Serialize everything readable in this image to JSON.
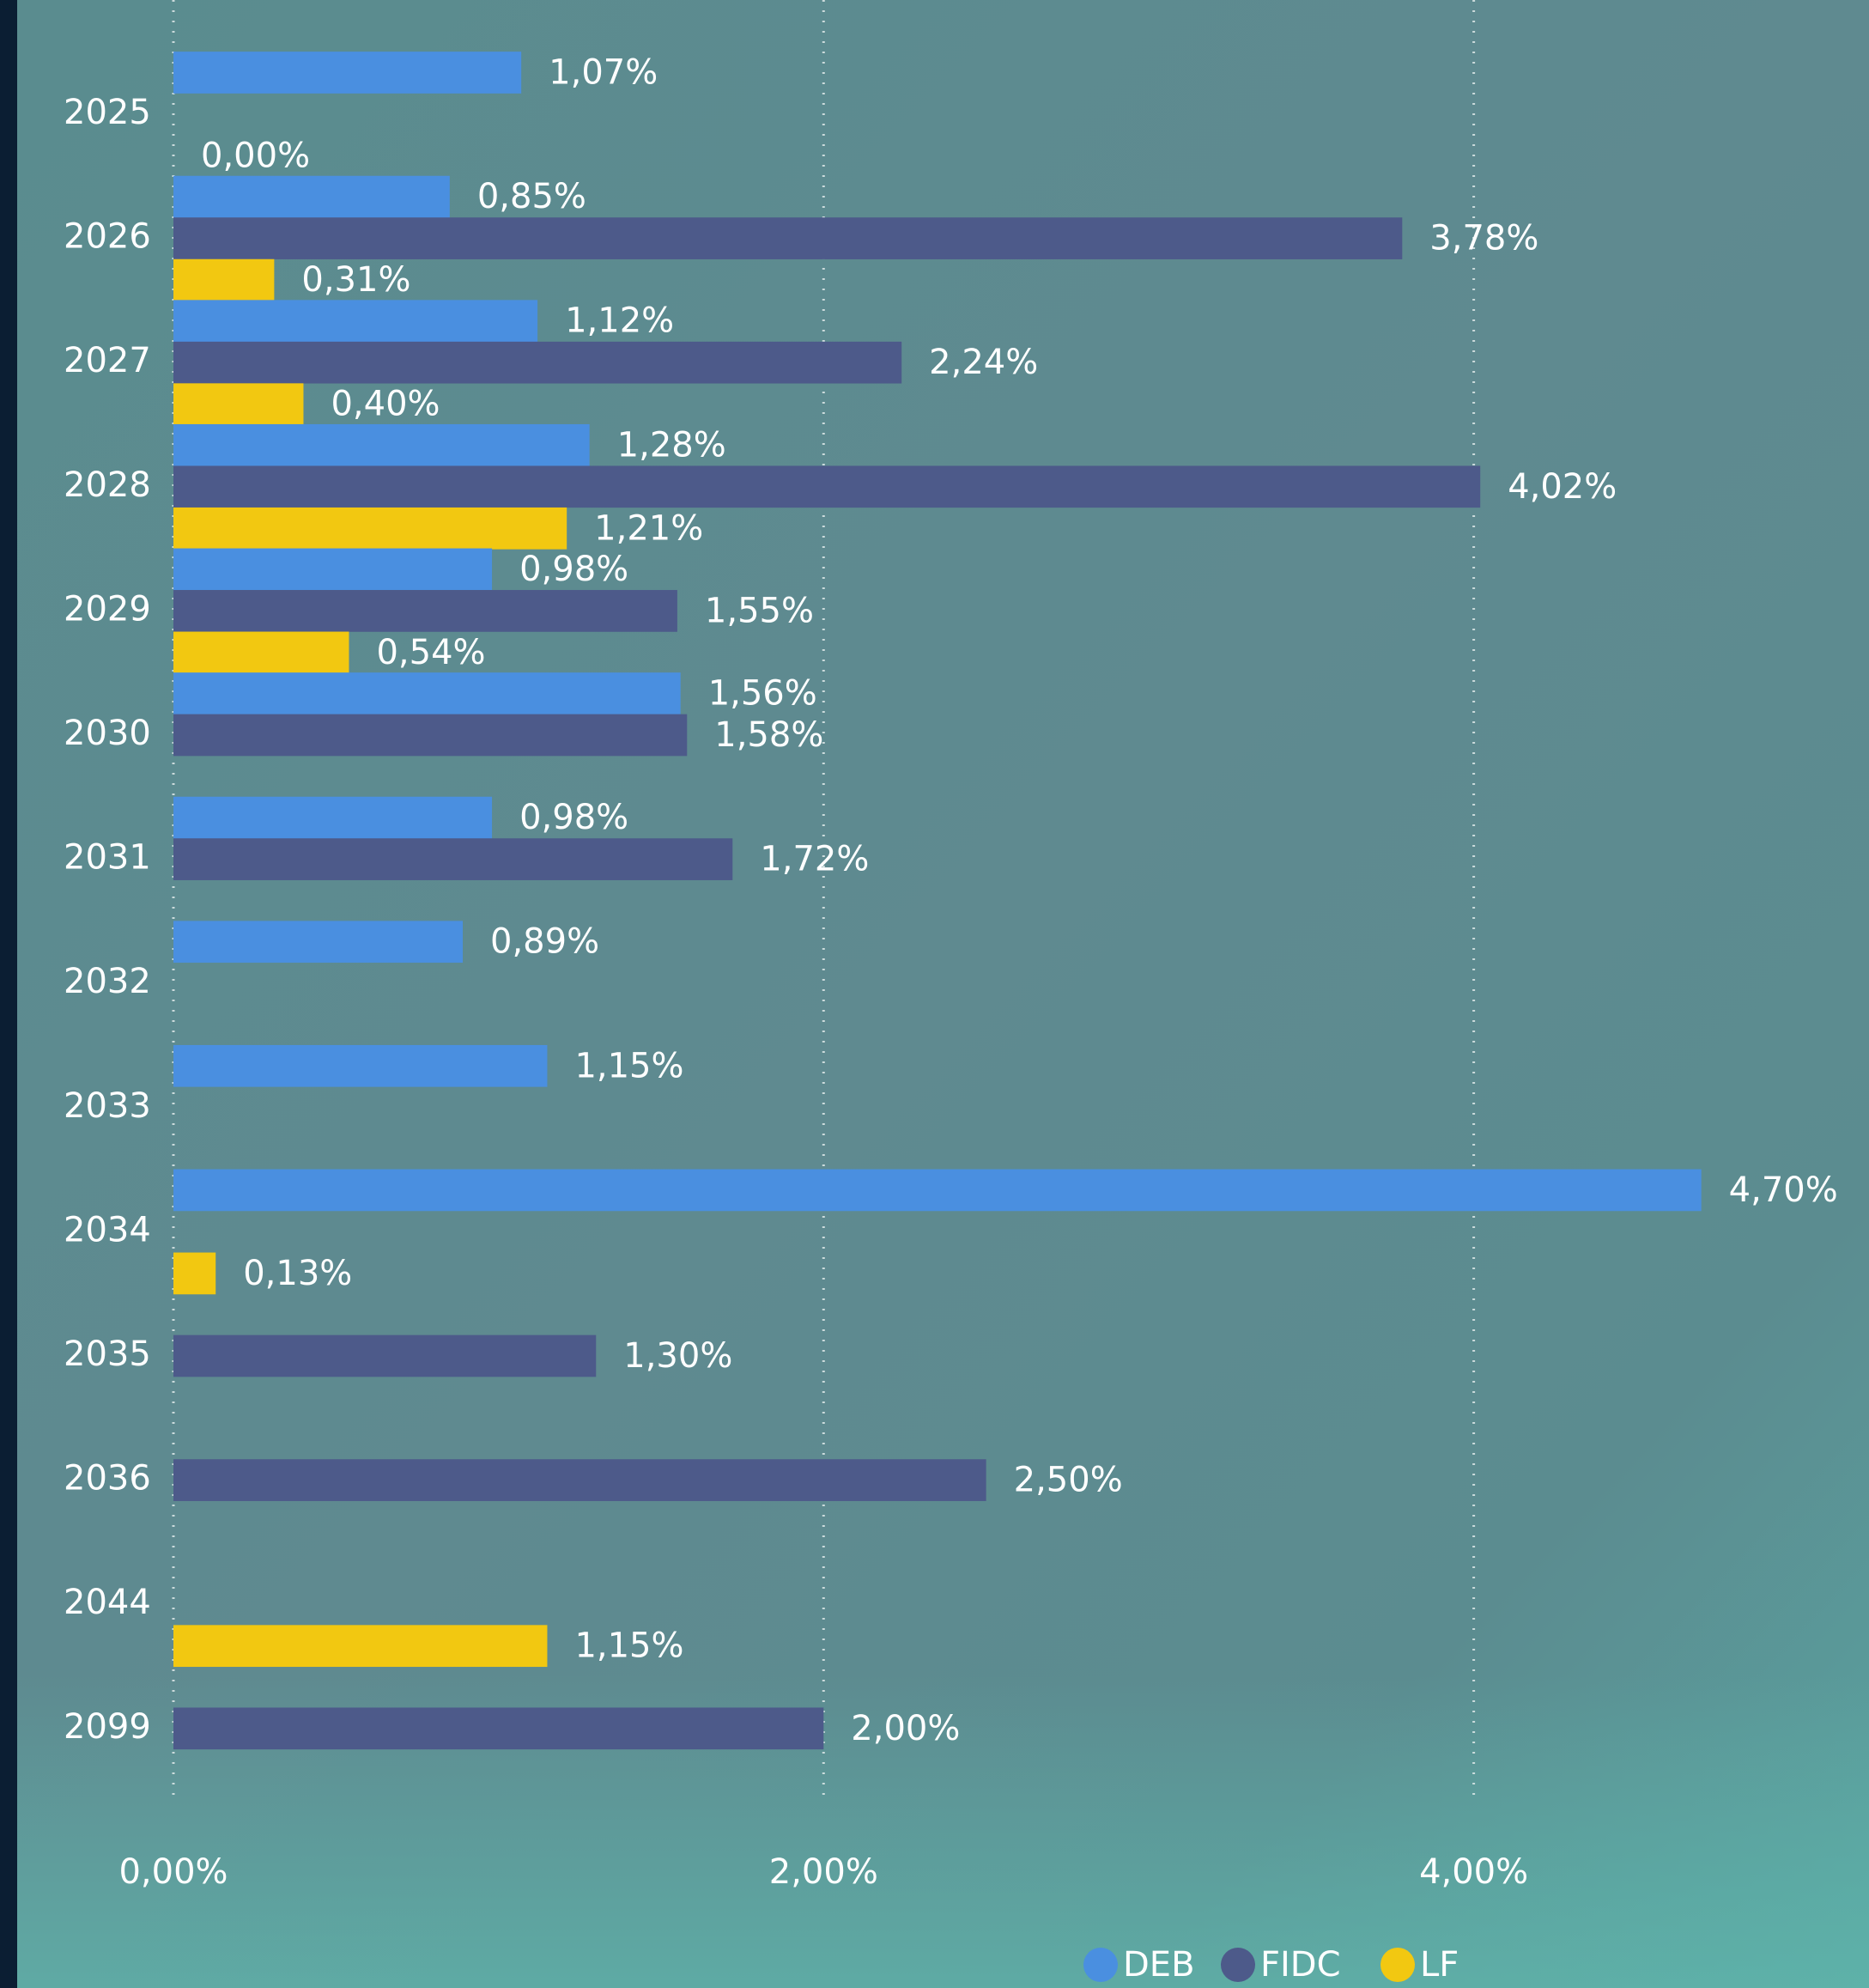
{
  "chart_data": {
    "type": "hbar",
    "categories": [
      "2025",
      "2026",
      "2027",
      "2028",
      "2029",
      "2030",
      "2031",
      "2032",
      "2033",
      "2034",
      "2035",
      "2036",
      "2044",
      "2099"
    ],
    "series": [
      {
        "name": "DEB",
        "color": "#4a8fe0",
        "values": [
          1.07,
          0.85,
          1.12,
          1.28,
          0.98,
          1.56,
          0.98,
          0.89,
          1.15,
          4.7,
          null,
          null,
          null,
          null
        ],
        "value_labels": [
          "1,07%",
          "0,85%",
          "1,12%",
          "1,28%",
          "0,98%",
          "1,56%",
          "0,98%",
          "0,89%",
          "1,15%",
          "4,70%",
          null,
          null,
          null,
          null
        ]
      },
      {
        "name": "FIDC",
        "color": "#4d5a8a",
        "values": [
          null,
          3.78,
          2.24,
          4.02,
          1.55,
          1.58,
          1.72,
          null,
          null,
          null,
          1.3,
          2.5,
          null,
          2.0
        ],
        "value_labels": [
          null,
          "3,78%",
          "2,24%",
          "4,02%",
          "1,55%",
          "1,58%",
          "1,72%",
          null,
          null,
          null,
          "1,30%",
          "2,50%",
          null,
          "2,00%"
        ]
      },
      {
        "name": "LF",
        "color": "#f2c811",
        "values": [
          0,
          0.31,
          0.4,
          1.21,
          0.54,
          null,
          null,
          null,
          null,
          0.13,
          null,
          null,
          1.15,
          null
        ],
        "value_labels": [
          "0,00%",
          "0,31%",
          "0,40%",
          "1,21%",
          "0,54%",
          null,
          null,
          null,
          null,
          "0,13%",
          null,
          null,
          "1,15%",
          null
        ]
      }
    ],
    "xlim": [
      0,
      5.2
    ],
    "xticks": [
      {
        "value": 0,
        "label": "0,00%"
      },
      {
        "value": 2,
        "label": "2,00%"
      },
      {
        "value": 4,
        "label": "4,00%"
      }
    ],
    "grid": true,
    "legend": "bottom"
  }
}
